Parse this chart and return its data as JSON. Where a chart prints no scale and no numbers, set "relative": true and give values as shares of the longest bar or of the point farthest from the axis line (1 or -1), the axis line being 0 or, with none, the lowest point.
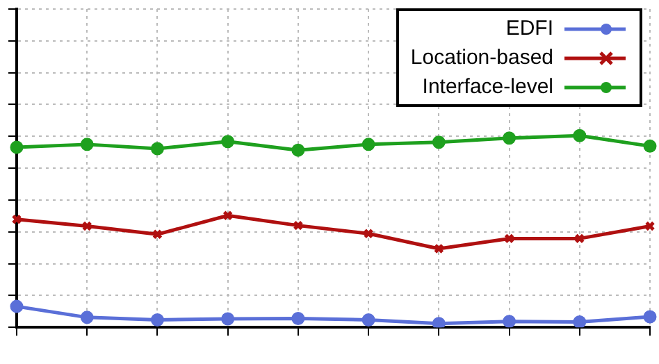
{
  "chart_data": {
    "type": "line",
    "relative": true,
    "categories": [
      null,
      null,
      null,
      null,
      null,
      null,
      null,
      null,
      null,
      null
    ],
    "grid": true,
    "legend": "top right",
    "series": [
      {
        "name": "EDFI",
        "color": "#5a6fd8",
        "marker": "circle",
        "values": [
          0.109,
          0.052,
          0.039,
          0.044,
          0.046,
          0.039,
          0.02,
          0.031,
          0.028,
          0.055
        ]
      },
      {
        "name": "Location-based",
        "color": "#b01010",
        "marker": "cross",
        "values": [
          0.563,
          0.528,
          0.485,
          0.583,
          0.531,
          0.489,
          0.41,
          0.463,
          0.463,
          0.528
        ]
      },
      {
        "name": "Interface-level",
        "color": "#1ea01e",
        "marker": "circle",
        "values": [
          0.939,
          0.954,
          0.932,
          0.969,
          0.924,
          0.954,
          0.965,
          0.987,
          1,
          0.945
        ]
      }
    ]
  }
}
